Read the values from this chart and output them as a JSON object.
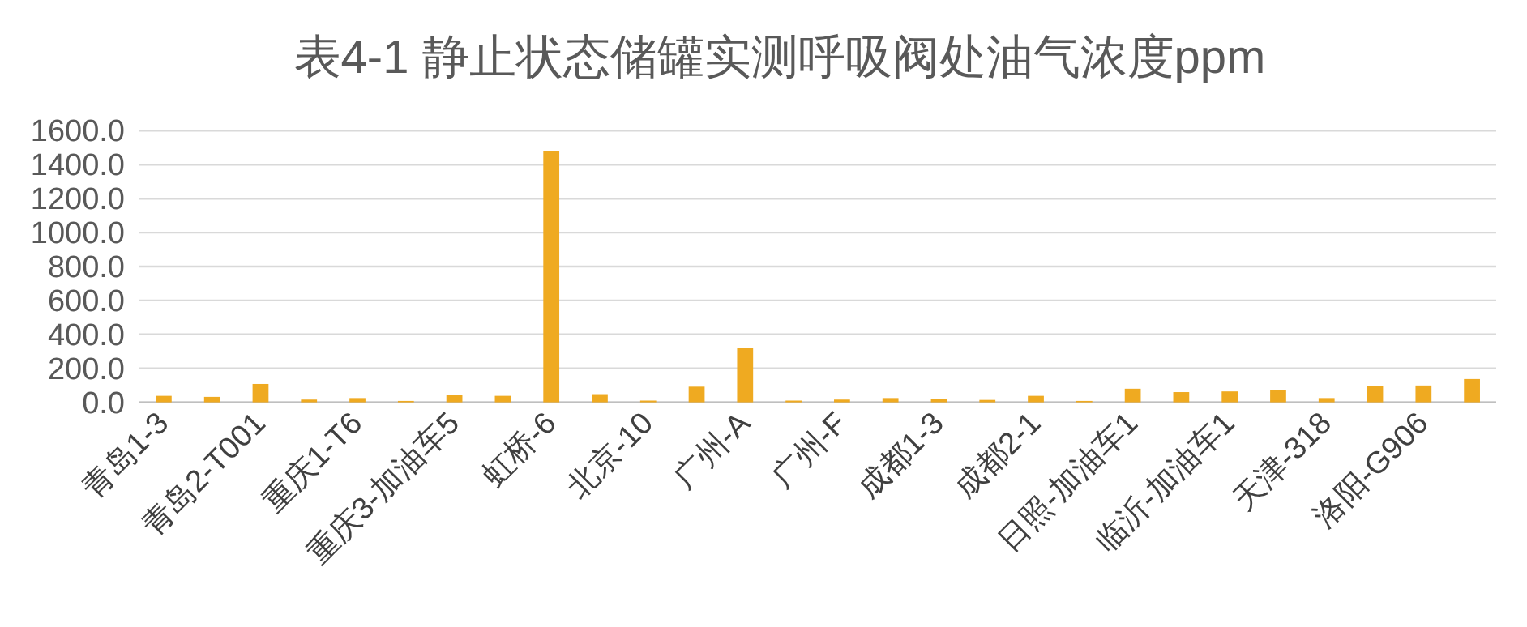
{
  "chart_data": {
    "type": "bar",
    "title": "表4-1  静止状态储罐实测呼吸阀处油气浓度ppm",
    "categories": [
      "青岛1-3",
      null,
      "青岛2-T001",
      null,
      "重庆1-T6",
      null,
      "重庆3-加油车5",
      null,
      "虹桥-6",
      null,
      "北京-10",
      null,
      "广州-A",
      null,
      "广州-F",
      null,
      "成都1-3",
      null,
      "成都2-1",
      null,
      "日照-加油车1",
      null,
      "临沂-加油车1",
      null,
      "天津-318",
      null,
      "洛阳-G906",
      null
    ],
    "values": [
      38,
      32,
      108,
      16,
      25,
      8,
      41,
      38,
      1482,
      48,
      10,
      92,
      321,
      10,
      16,
      25,
      20,
      14,
      38,
      8,
      80,
      60,
      64,
      73,
      25,
      95,
      99,
      137
    ],
    "color": "#efaa21",
    "ylim": [
      0,
      1600
    ],
    "yticks": [
      {
        "value": 0,
        "label": "0.0"
      },
      {
        "value": 200,
        "label": "200.0"
      },
      {
        "value": 400,
        "label": "400.0"
      },
      {
        "value": 600,
        "label": "600.0"
      },
      {
        "value": 800,
        "label": "800.0"
      },
      {
        "value": 1000,
        "label": "1000.0"
      },
      {
        "value": 1200,
        "label": "1200.0"
      },
      {
        "value": 1400,
        "label": "1400.0"
      },
      {
        "value": 1600,
        "label": "1600.0"
      }
    ],
    "grid": "y"
  }
}
